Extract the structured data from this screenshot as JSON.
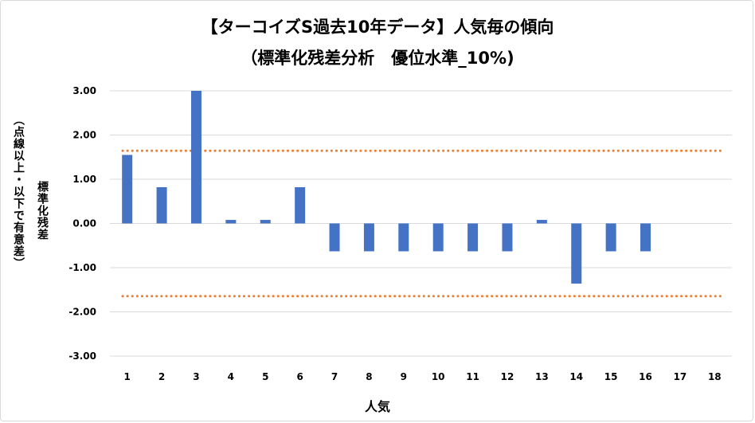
{
  "chart_data": {
    "type": "bar",
    "title_line1": "【ターコイズS過去10年データ】人気毎の傾向",
    "title_line2": "（標準化残差分析　優位水準_10%)",
    "xlabel": "人気",
    "ylabel_line1": "標準化残差",
    "ylabel_line2": "（点線以上・以下で有意差）",
    "categories": [
      "1",
      "2",
      "3",
      "4",
      "5",
      "6",
      "7",
      "8",
      "9",
      "10",
      "11",
      "12",
      "13",
      "14",
      "15",
      "16",
      "17",
      "18"
    ],
    "values": [
      1.55,
      0.82,
      3.0,
      0.08,
      0.08,
      0.82,
      -0.63,
      -0.63,
      -0.63,
      -0.63,
      -0.63,
      -0.63,
      0.08,
      -1.36,
      -0.63,
      -0.63,
      null,
      null
    ],
    "y_ticks": [
      "3.00",
      "2.00",
      "1.00",
      "0.00",
      "-1.00",
      "-2.00",
      "-3.00"
    ],
    "ylim": [
      -3,
      3
    ],
    "threshold_upper": 1.645,
    "threshold_lower": -1.645,
    "grid": true,
    "colors": {
      "bar": "#4472c4",
      "threshold": "#ed7d31",
      "grid": "#d9d9d9"
    }
  }
}
